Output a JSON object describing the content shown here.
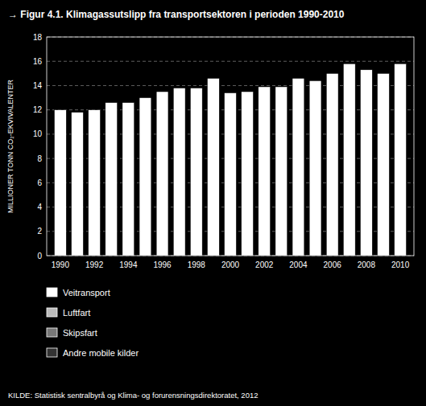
{
  "chart_data": {
    "type": "bar",
    "title": "→ Figur 4.1. Klimagassutslipp fra transportsektoren i perioden 1990-2010",
    "y_label": "MILLIONER TONN CO₂-EKVIVALENTER",
    "annotation": "KILDE: Statistisk sentralbyrå og Klima- og forurensningsdirektoratet, 2012",
    "x": [
      1990,
      1991,
      1992,
      1993,
      1994,
      1995,
      1996,
      1997,
      1998,
      1999,
      2000,
      2001,
      2002,
      2003,
      2004,
      2005,
      2006,
      2007,
      2008,
      2009,
      2010
    ],
    "series": [
      {
        "name": "Veitransport",
        "color": "#ffffff",
        "values": [
          12.0,
          11.8,
          12.0,
          12.6,
          12.6,
          13.0,
          13.5,
          13.8,
          13.8,
          14.6,
          13.4,
          13.5,
          13.9,
          13.9,
          14.6,
          14.4,
          15.0,
          15.8,
          15.3,
          15.0,
          15.8
        ]
      },
      {
        "name": "Luftfart",
        "color": "#bbbbbb",
        "values": [
          null,
          null,
          null,
          null,
          null,
          null,
          null,
          null,
          null,
          null,
          null,
          null,
          null,
          null,
          null,
          null,
          null,
          null,
          null,
          null,
          null
        ]
      },
      {
        "name": "Skipsfart",
        "color": "#777777",
        "values": [
          null,
          null,
          null,
          null,
          null,
          null,
          null,
          null,
          null,
          null,
          null,
          null,
          null,
          null,
          null,
          null,
          null,
          null,
          null,
          null,
          null
        ]
      },
      {
        "name": "Andre mobile kilder",
        "color": "#333333",
        "values": [
          null,
          null,
          null,
          null,
          null,
          null,
          null,
          null,
          null,
          null,
          null,
          null,
          null,
          null,
          null,
          null,
          null,
          null,
          null,
          null,
          null
        ]
      }
    ],
    "xlim": [
      1989.2,
      2010.8
    ],
    "xticks": [
      1990,
      1992,
      1994,
      1996,
      1998,
      2000,
      2002,
      2004,
      2006,
      2008,
      2010
    ],
    "ylim": [
      0,
      18
    ],
    "yticks": [
      0,
      2,
      4,
      6,
      8,
      10,
      12,
      14,
      16,
      18
    ],
    "grid": true,
    "legend": "bottom"
  }
}
